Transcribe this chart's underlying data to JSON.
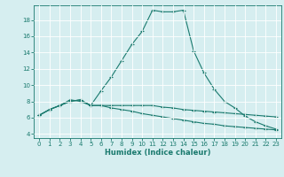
{
  "xlabel": "Humidex (Indice chaleur)",
  "bg_color": "#d6eef0",
  "line_color": "#1a7a6e",
  "grid_color": "#ffffff",
  "xlim": [
    -0.5,
    23.5
  ],
  "ylim": [
    3.5,
    19.8
  ],
  "yticks": [
    4,
    6,
    8,
    10,
    12,
    14,
    16,
    18
  ],
  "xticks": [
    0,
    1,
    2,
    3,
    4,
    5,
    6,
    7,
    8,
    9,
    10,
    11,
    12,
    13,
    14,
    15,
    16,
    17,
    18,
    19,
    20,
    21,
    22,
    23
  ],
  "line1_x": [
    0,
    1,
    2,
    3,
    4,
    5,
    6,
    7,
    8,
    9,
    10,
    11,
    12,
    13,
    14,
    15,
    16,
    17,
    18,
    19,
    20,
    21,
    22,
    23
  ],
  "line1_y": [
    6.3,
    7.0,
    7.5,
    8.0,
    8.2,
    7.5,
    9.3,
    11.0,
    13.0,
    15.0,
    16.6,
    19.2,
    19.0,
    19.0,
    19.2,
    14.2,
    11.5,
    9.5,
    8.0,
    7.2,
    6.2,
    5.5,
    5.0,
    4.6
  ],
  "line2_x": [
    0,
    1,
    2,
    3,
    4,
    5,
    6,
    7,
    8,
    9,
    10,
    11,
    12,
    13,
    14,
    15,
    16,
    17,
    18,
    19,
    20,
    21,
    22,
    23
  ],
  "line2_y": [
    6.3,
    7.0,
    7.5,
    8.2,
    8.0,
    7.5,
    7.5,
    7.5,
    7.5,
    7.5,
    7.5,
    7.5,
    7.3,
    7.2,
    7.0,
    6.9,
    6.8,
    6.7,
    6.6,
    6.5,
    6.4,
    6.3,
    6.2,
    6.1
  ],
  "line3_x": [
    0,
    1,
    2,
    3,
    4,
    5,
    6,
    7,
    8,
    9,
    10,
    11,
    12,
    13,
    14,
    15,
    16,
    17,
    18,
    19,
    20,
    21,
    22,
    23
  ],
  "line3_y": [
    6.3,
    7.0,
    7.5,
    8.0,
    8.2,
    7.5,
    7.5,
    7.2,
    7.0,
    6.8,
    6.5,
    6.3,
    6.1,
    5.9,
    5.7,
    5.5,
    5.3,
    5.2,
    5.0,
    4.9,
    4.8,
    4.7,
    4.6,
    4.5
  ],
  "tick_fontsize": 5.0,
  "xlabel_fontsize": 6.0
}
